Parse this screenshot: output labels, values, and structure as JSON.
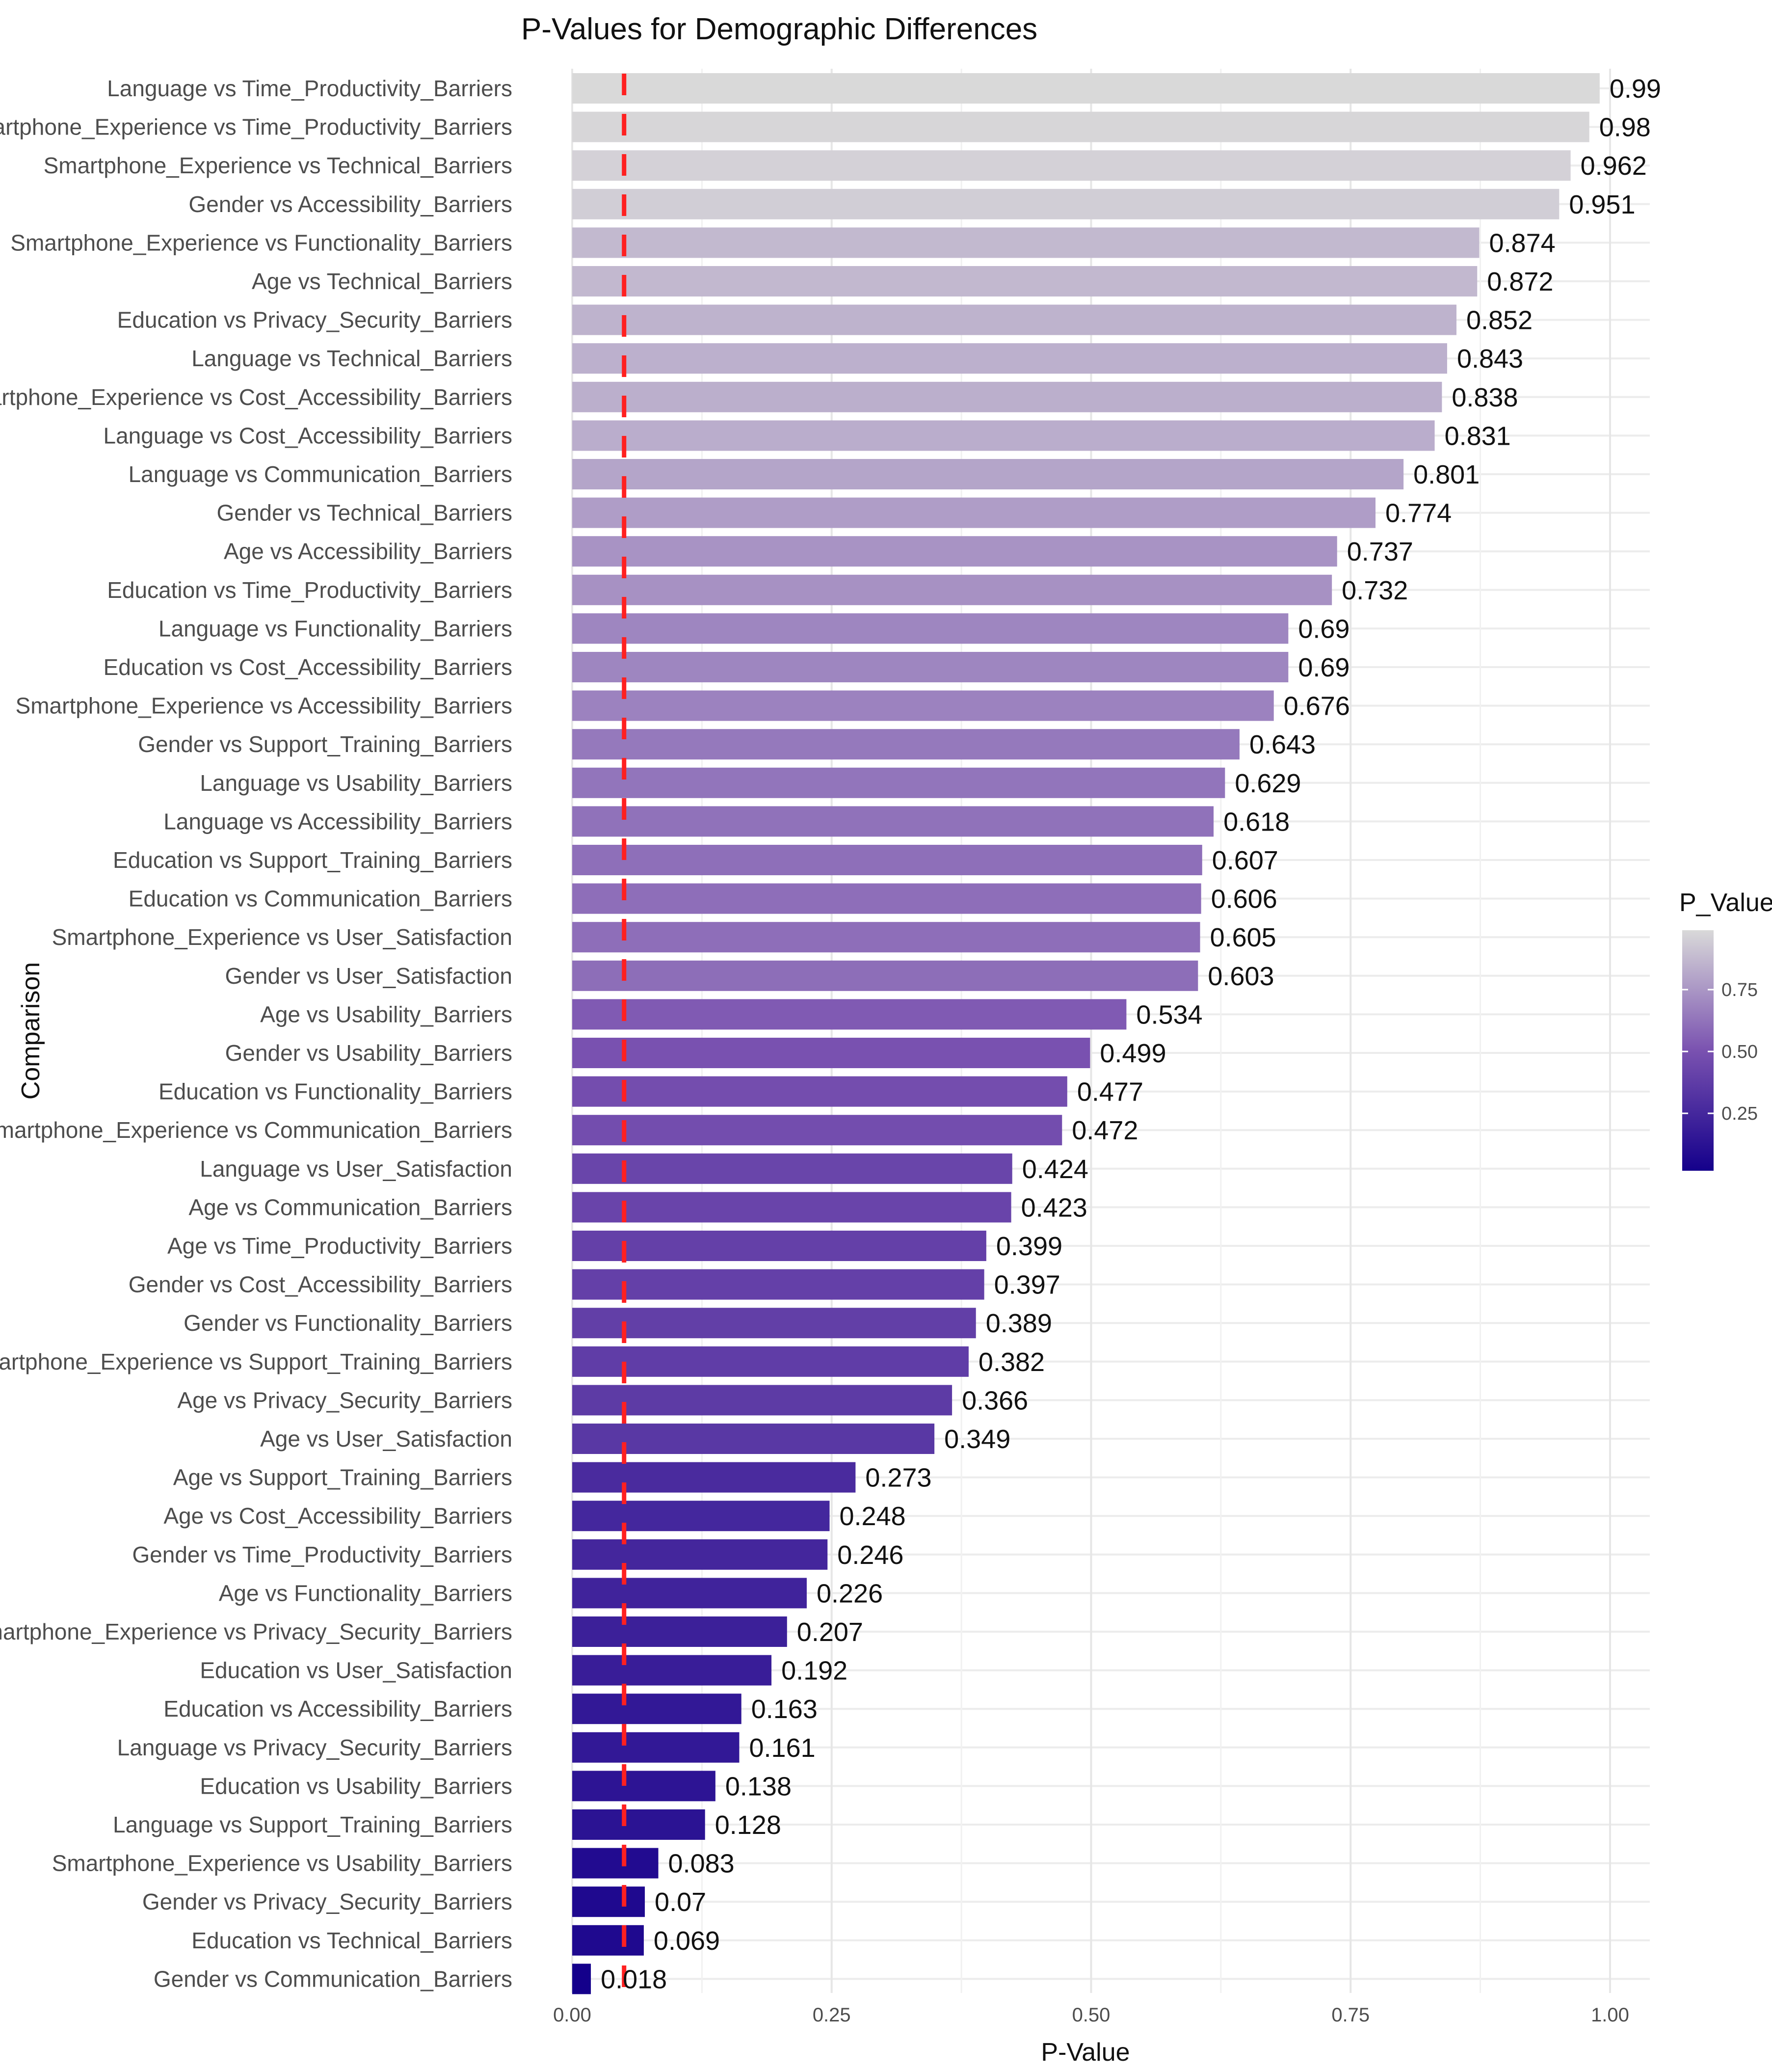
{
  "chart_data": {
    "type": "bar",
    "orientation": "horizontal",
    "title": "P-Values for Demographic Differences",
    "xlabel": "P-Value",
    "ylabel": "Comparison",
    "xlim": [
      0,
      1.04
    ],
    "x_ticks": [
      0,
      0.25,
      0.5,
      0.75,
      1.0
    ],
    "x_tick_labels": [
      "0.00",
      "0.25",
      "0.50",
      "0.75",
      "1.00"
    ],
    "reference_line": {
      "x": 0.05,
      "color": "#ff2020",
      "style": "dashed"
    },
    "categories": [
      "Language vs Time_Productivity_Barriers",
      "Smartphone_Experience vs Time_Productivity_Barriers",
      "Smartphone_Experience vs Technical_Barriers",
      "Gender vs Accessibility_Barriers",
      "Smartphone_Experience vs Functionality_Barriers",
      "Age vs Technical_Barriers",
      "Education vs Privacy_Security_Barriers",
      "Language vs Technical_Barriers",
      "Smartphone_Experience vs Cost_Accessibility_Barriers",
      "Language vs Cost_Accessibility_Barriers",
      "Language vs Communication_Barriers",
      "Gender vs Technical_Barriers",
      "Age vs Accessibility_Barriers",
      "Education vs Time_Productivity_Barriers",
      "Language vs Functionality_Barriers",
      "Education vs Cost_Accessibility_Barriers",
      "Smartphone_Experience vs Accessibility_Barriers",
      "Gender vs Support_Training_Barriers",
      "Language vs Usability_Barriers",
      "Language vs Accessibility_Barriers",
      "Education vs Support_Training_Barriers",
      "Education vs Communication_Barriers",
      "Smartphone_Experience vs User_Satisfaction",
      "Gender vs User_Satisfaction",
      "Age vs Usability_Barriers",
      "Gender vs Usability_Barriers",
      "Education vs Functionality_Barriers",
      "Smartphone_Experience vs Communication_Barriers",
      "Language vs User_Satisfaction",
      "Age vs Communication_Barriers",
      "Age vs Time_Productivity_Barriers",
      "Gender vs Cost_Accessibility_Barriers",
      "Gender vs Functionality_Barriers",
      "Smartphone_Experience vs Support_Training_Barriers",
      "Age vs Privacy_Security_Barriers",
      "Age vs User_Satisfaction",
      "Age vs Support_Training_Barriers",
      "Age vs Cost_Accessibility_Barriers",
      "Gender vs Time_Productivity_Barriers",
      "Age vs Functionality_Barriers",
      "Smartphone_Experience vs Privacy_Security_Barriers",
      "Education vs User_Satisfaction",
      "Education vs Accessibility_Barriers",
      "Language vs Privacy_Security_Barriers",
      "Education vs Usability_Barriers",
      "Language vs Support_Training_Barriers",
      "Smartphone_Experience vs Usability_Barriers",
      "Gender vs Privacy_Security_Barriers",
      "Education vs Technical_Barriers",
      "Gender vs Communication_Barriers"
    ],
    "values": [
      0.99,
      0.98,
      0.962,
      0.951,
      0.874,
      0.872,
      0.852,
      0.843,
      0.838,
      0.831,
      0.801,
      0.774,
      0.737,
      0.732,
      0.69,
      0.69,
      0.676,
      0.643,
      0.629,
      0.618,
      0.607,
      0.606,
      0.605,
      0.603,
      0.534,
      0.499,
      0.477,
      0.472,
      0.424,
      0.423,
      0.399,
      0.397,
      0.389,
      0.382,
      0.366,
      0.349,
      0.273,
      0.248,
      0.246,
      0.226,
      0.207,
      0.192,
      0.163,
      0.161,
      0.138,
      0.128,
      0.083,
      0.07,
      0.069,
      0.018
    ],
    "value_labels": [
      "0.99",
      "0.98",
      "0.962",
      "0.951",
      "0.874",
      "0.872",
      "0.852",
      "0.843",
      "0.838",
      "0.831",
      "0.801",
      "0.774",
      "0.737",
      "0.732",
      "0.69",
      "0.69",
      "0.676",
      "0.643",
      "0.629",
      "0.618",
      "0.607",
      "0.606",
      "0.605",
      "0.603",
      "0.534",
      "0.499",
      "0.477",
      "0.472",
      "0.424",
      "0.423",
      "0.399",
      "0.397",
      "0.389",
      "0.382",
      "0.366",
      "0.349",
      "0.273",
      "0.248",
      "0.246",
      "0.226",
      "0.207",
      "0.192",
      "0.163",
      "0.161",
      "0.138",
      "0.128",
      "0.083",
      "0.07",
      "0.069",
      "0.018"
    ],
    "legend": {
      "title": "P_Value",
      "position": "right",
      "ticks": [
        0.25,
        0.5,
        0.75
      ],
      "tick_labels": [
        "0.25",
        "0.50",
        "0.75"
      ],
      "range": [
        0.018,
        0.99
      ],
      "color_low": "#14008b",
      "color_high": "#d9d9d9"
    },
    "grid": true
  }
}
